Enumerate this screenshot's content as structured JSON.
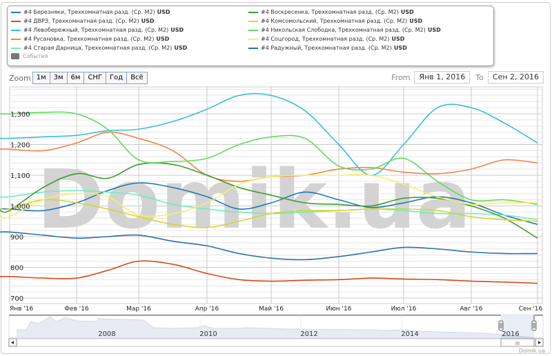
{
  "legend": {
    "items": [
      {
        "label": "#4 Березняки, Трехкомнатная разд. (Ср. М2)",
        "unit": "USD",
        "color": "#1f78b4"
      },
      {
        "label": "#4 ДВРЗ, Трехкомнатная разд. (Ср. М2)",
        "unit": "USD",
        "color": "#d9481c"
      },
      {
        "label": "#4 Левобережный, Трехкомнатная разд. (Ср. М2)",
        "unit": "USD",
        "color": "#36bde0"
      },
      {
        "label": "#4 Русановка, Трехкомнатная разд. (Ср. М2)",
        "unit": "USD",
        "color": "#f28147"
      },
      {
        "label": "#4 Старая Дарница, Трехкомнатная разд. (Ср. М2)",
        "unit": "USD",
        "color": "#6eebc3"
      },
      {
        "label": "#4 Воскресенка, Трехкомнатная разд. (Ср. М2)",
        "unit": "USD",
        "color": "#3a9e2b"
      },
      {
        "label": "#4 Комсомольский, Трехкомнатная разд. (Ср. М2)",
        "unit": "USD",
        "color": "#d6d62a"
      },
      {
        "label": "#4 Никольская Слободка, Трехкомнатная разд. (Ср. М2)",
        "unit": "USD",
        "color": "#5fdc5a"
      },
      {
        "label": "#4 Соцгород, Трехкомнатная разд. (Ср. М2)",
        "unit": "USD",
        "color": "#f5ef6a"
      },
      {
        "label": "#4 Радужный, Трехкомнатная разд. (Ср. М2)",
        "unit": "USD",
        "color": "#2a6fa8"
      }
    ],
    "events_label": "События"
  },
  "zoom": {
    "label": "Zoom",
    "buttons": [
      "1м",
      "3м",
      "6м",
      "СНГ",
      "Год",
      "Всё"
    ]
  },
  "range": {
    "from_label": "From",
    "from_value": "Янв 1, 2016",
    "to_label": "To",
    "to_value": "Сен 2, 2016"
  },
  "watermark": "Domik.ua",
  "credit": "Domik.ua",
  "navigator": {
    "year_labels": [
      "2008",
      "2010",
      "2012",
      "2014",
      "2016"
    ]
  },
  "chart_data": {
    "type": "line",
    "title": "",
    "xlabel": "",
    "ylabel": "",
    "x_ticks": [
      "Янв '16",
      "Фев '16",
      "Мар '16",
      "Апр '16",
      "Май '16",
      "Июн '16",
      "Июл '16",
      "Авг '16",
      "Сен '16"
    ],
    "y_ticks": [
      "700",
      "800",
      "900",
      "1,000",
      "1,100",
      "1,200",
      "1,300"
    ],
    "ylim": [
      680,
      1380
    ],
    "x_domain_months": [
      0,
      8.05
    ],
    "grid": true,
    "legend_position": "top",
    "x": [
      0,
      0.5,
      1,
      1.5,
      2,
      2.5,
      3,
      3.5,
      4,
      4.5,
      5,
      5.5,
      6,
      6.5,
      7,
      7.5,
      8
    ],
    "series": [
      {
        "name": "#4 Березняки, Трехкомнатная разд. (Ср. М2) USD",
        "values": [
          990,
          985,
          1010,
          1050,
          1075,
          1060,
          1030,
          990,
          1010,
          1045,
          1020,
          995,
          1010,
          1030,
          1010,
          970,
          940
        ]
      },
      {
        "name": "#4 ДВРЗ, Трехкомнатная разд. (Ср. М2) USD",
        "values": [
          770,
          765,
          765,
          790,
          820,
          810,
          780,
          760,
          755,
          758,
          760,
          765,
          762,
          760,
          755,
          752,
          748
        ]
      },
      {
        "name": "#4 Левобережный, Трехкомнатная разд. (Ср. М2) USD",
        "values": [
          1220,
          1225,
          1230,
          1245,
          1250,
          1275,
          1315,
          1360,
          1360,
          1310,
          1200,
          1100,
          1200,
          1320,
          1320,
          1270,
          1205
        ]
      },
      {
        "name": "#4 Русановка, Трехкомнатная разд. (Ср. М2) USD",
        "values": [
          1185,
          1180,
          1205,
          1240,
          1220,
          1180,
          1100,
          1080,
          1095,
          1100,
          1120,
          1125,
          1110,
          1105,
          1120,
          1150,
          1140
        ]
      },
      {
        "name": "#4 Старая Дарница, Трехкомнатная разд. (Ср. М2) USD",
        "values": [
          1030,
          1045,
          1050,
          1045,
          1035,
          1005,
          990,
          980,
          975,
          980,
          985,
          990,
          985,
          975,
          975,
          970,
          955
        ]
      },
      {
        "name": "#4 Воскресенка, Трехкомнатная разд. (Ср. М2) USD",
        "values": [
          985,
          1060,
          1105,
          1090,
          1135,
          1135,
          1100,
          1060,
          1035,
          1010,
          1005,
          1000,
          1025,
          1025,
          1000,
          960,
          895
        ]
      },
      {
        "name": "#4 Комсомольский, Трехкомнатная разд. (Ср. М2) USD",
        "values": [
          990,
          1020,
          1010,
          990,
          965,
          940,
          930,
          950,
          975,
          985,
          985,
          990,
          990,
          985,
          965,
          955,
          950
        ]
      },
      {
        "name": "#4 Никольская Слободка, Трехкомнатная разд. (Ср. М2) USD",
        "values": [
          1300,
          1305,
          1300,
          1250,
          1150,
          1145,
          1155,
          1200,
          1225,
          1220,
          1130,
          1120,
          1155,
          1080,
          1020,
          1020,
          1005
        ]
      },
      {
        "name": "#4 Соцгород, Трехкомнатная разд. (Ср. М2) USD",
        "values": [
          965,
          1020,
          1040,
          1030,
          970,
          975,
          1010,
          1070,
          1095,
          1100,
          1100,
          1100,
          1070,
          1030,
          1005,
          1010,
          1010
        ]
      },
      {
        "name": "#4 Радужный, Трехкомнатная разд. (Ср. М2) USD",
        "values": [
          915,
          905,
          895,
          900,
          905,
          885,
          870,
          845,
          830,
          825,
          835,
          850,
          865,
          860,
          850,
          845,
          845
        ]
      }
    ]
  }
}
